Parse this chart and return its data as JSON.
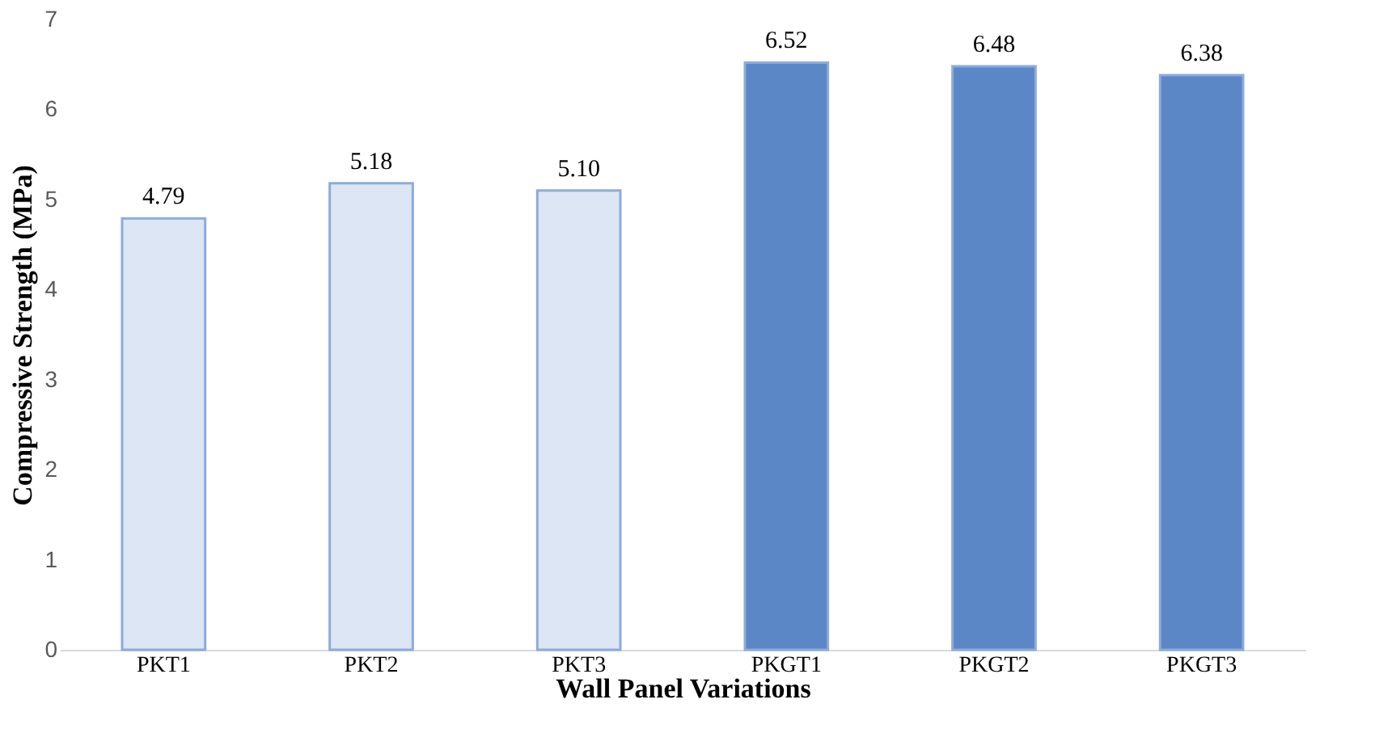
{
  "chart_data": {
    "type": "bar",
    "xlabel": "Wall Panel Variations",
    "ylabel": "Compressive Strength (MPa)",
    "categories": [
      "PKT1",
      "PKT2",
      "PKT3",
      "PKGT1",
      "PKGT2",
      "PKGT3"
    ],
    "values": [
      4.79,
      5.18,
      5.1,
      6.52,
      6.48,
      6.38
    ],
    "colors": [
      "#dce6f4",
      "#dce6f4",
      "#dce6f4",
      "#5b87c7",
      "#5b87c7",
      "#5b87c7"
    ],
    "value_labels": [
      "4.79",
      "5.18",
      "5.10",
      "6.52",
      "6.48",
      "6.38"
    ],
    "ylim": [
      0,
      7
    ],
    "yticks": [
      0,
      1,
      2,
      3,
      4,
      5,
      6,
      7
    ],
    "grid": false
  }
}
